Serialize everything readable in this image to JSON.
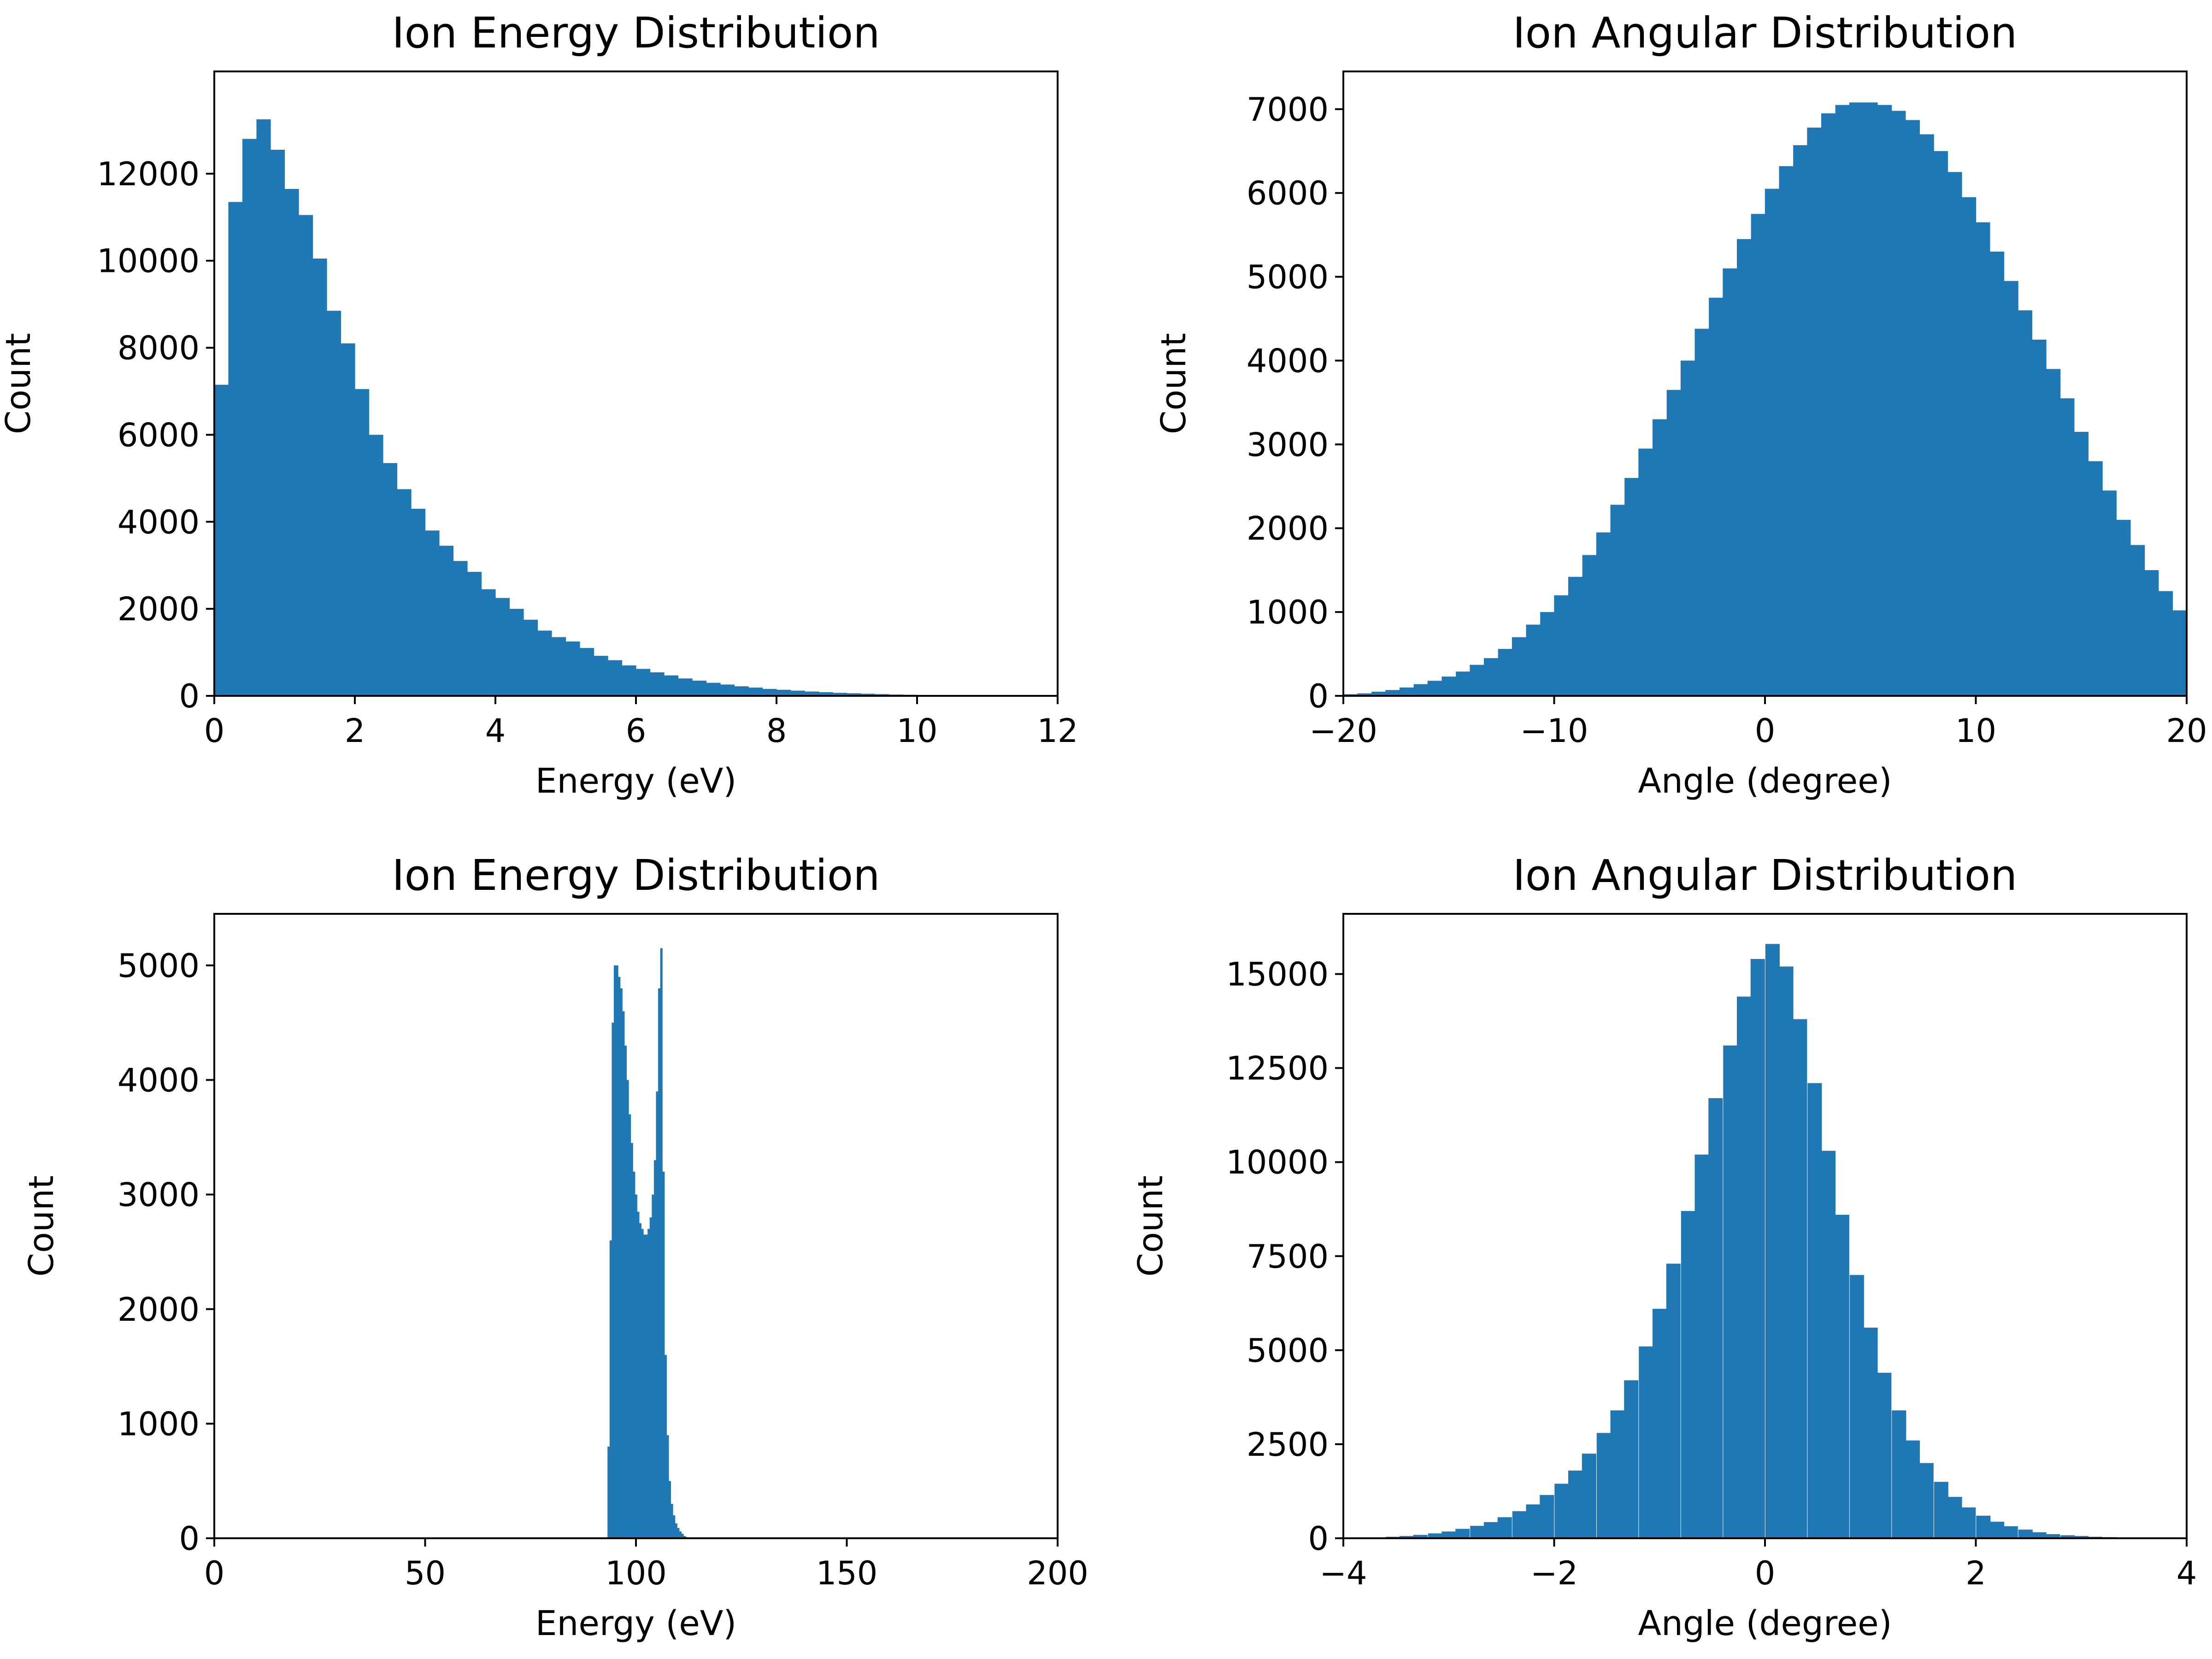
{
  "colors": {
    "bar": "#1f77b4",
    "axis": "#000000",
    "background": "#ffffff"
  },
  "chart_data": [
    {
      "type": "bar",
      "title": "Ion Energy Distribution",
      "xlabel": "Energy (eV)",
      "ylabel": "Count",
      "xlim": [
        0,
        12
      ],
      "ylim": [
        0,
        14350
      ],
      "xticks": [
        0,
        2,
        4,
        6,
        8,
        10,
        12
      ],
      "yticks": [
        0,
        2000,
        4000,
        6000,
        8000,
        10000,
        12000
      ],
      "bin_width": 0.2,
      "x": [
        0.1,
        0.3,
        0.5,
        0.7,
        0.9,
        1.1,
        1.3,
        1.5,
        1.7,
        1.9,
        2.1,
        2.3,
        2.5,
        2.7,
        2.9,
        3.1,
        3.3,
        3.5,
        3.7,
        3.9,
        4.1,
        4.3,
        4.5,
        4.7,
        4.9,
        5.1,
        5.3,
        5.5,
        5.7,
        5.9,
        6.1,
        6.3,
        6.5,
        6.7,
        6.9,
        7.1,
        7.3,
        7.5,
        7.7,
        7.9,
        8.1,
        8.3,
        8.5,
        8.7,
        8.9,
        9.1,
        9.3,
        9.5,
        9.7,
        9.9
      ],
      "values": [
        7150,
        11350,
        12800,
        13250,
        12550,
        11650,
        11050,
        10050,
        8850,
        8100,
        7050,
        6000,
        5350,
        4750,
        4300,
        3800,
        3450,
        3100,
        2850,
        2450,
        2250,
        2000,
        1750,
        1500,
        1350,
        1250,
        1100,
        920,
        820,
        700,
        620,
        540,
        470,
        400,
        350,
        300,
        260,
        220,
        190,
        160,
        140,
        120,
        100,
        85,
        70,
        60,
        50,
        40,
        30,
        25
      ],
      "legend": "none",
      "grid": false
    },
    {
      "type": "bar",
      "title": "Ion Angular Distribution",
      "xlabel": "Angle (degree)",
      "ylabel": "Count",
      "xlim": [
        -20,
        20
      ],
      "ylim": [
        0,
        7450
      ],
      "xticks": [
        -20,
        -10,
        0,
        10,
        20
      ],
      "xtick_labels": [
        "−20",
        "−10",
        "0",
        "10",
        "20"
      ],
      "yticks": [
        0,
        1000,
        2000,
        3000,
        4000,
        5000,
        6000,
        7000
      ],
      "bin_width": 0.6667,
      "x": [
        -19.67,
        -19.0,
        -18.33,
        -17.67,
        -17.0,
        -16.33,
        -15.67,
        -15.0,
        -14.33,
        -13.67,
        -13.0,
        -12.33,
        -11.67,
        -11.0,
        -10.33,
        -9.67,
        -9.0,
        -8.33,
        -7.67,
        -7.0,
        -6.33,
        -5.67,
        -5.0,
        -4.33,
        -3.67,
        -3.0,
        -2.33,
        -1.67,
        -1.0,
        -0.33,
        0.33,
        1.0,
        1.67,
        2.33,
        3.0,
        3.67,
        4.33,
        5.0,
        5.67,
        6.33,
        7.0,
        7.67,
        8.33,
        9.0,
        9.67,
        10.33,
        11.0,
        11.67,
        12.33,
        13.0,
        13.67,
        14.33,
        15.0,
        15.67,
        16.33,
        17.0,
        17.67,
        18.33,
        19.0,
        19.67
      ],
      "values": [
        20,
        30,
        50,
        70,
        100,
        140,
        180,
        230,
        290,
        370,
        450,
        560,
        700,
        850,
        1000,
        1200,
        1420,
        1680,
        1950,
        2280,
        2600,
        2950,
        3300,
        3650,
        4000,
        4380,
        4750,
        5100,
        5450,
        5750,
        6050,
        6320,
        6570,
        6780,
        6950,
        7050,
        7080,
        7080,
        7050,
        6980,
        6870,
        6700,
        6500,
        6250,
        5950,
        5650,
        5300,
        4950,
        4600,
        4250,
        3900,
        3550,
        3150,
        2800,
        2450,
        2100,
        1800,
        1500,
        1250,
        1020
      ],
      "legend": "none",
      "grid": false
    },
    {
      "type": "bar",
      "title": "Ion Energy Distribution",
      "xlabel": "Energy (eV)",
      "ylabel": "Count",
      "xlim": [
        0,
        200
      ],
      "ylim": [
        0,
        5450
      ],
      "xticks": [
        0,
        50,
        100,
        150,
        200
      ],
      "yticks": [
        0,
        1000,
        2000,
        3000,
        4000,
        5000
      ],
      "bin_width": 0.5,
      "x": [
        93.5,
        94.0,
        94.5,
        95.0,
        95.5,
        96.0,
        96.5,
        97.0,
        97.5,
        98.0,
        98.5,
        99.0,
        99.5,
        100.0,
        100.5,
        101.0,
        101.5,
        102.0,
        102.5,
        103.0,
        103.5,
        104.0,
        104.5,
        105.0,
        105.5,
        106.0,
        106.5,
        107.0,
        107.5,
        108.0,
        108.5,
        109.0,
        109.5,
        110.0,
        110.5,
        111.0,
        111.5,
        112.0
      ],
      "values": [
        800,
        2600,
        4500,
        5000,
        5000,
        4900,
        4800,
        4600,
        4300,
        4000,
        3700,
        3450,
        3200,
        3000,
        2850,
        2750,
        2700,
        2650,
        2650,
        2700,
        2800,
        3000,
        3300,
        3900,
        4800,
        5150,
        3200,
        1600,
        900,
        500,
        300,
        200,
        130,
        90,
        60,
        40,
        20,
        10
      ],
      "legend": "none",
      "grid": false
    },
    {
      "type": "bar",
      "title": "Ion Angular Distribution",
      "xlabel": "Angle (degree)",
      "ylabel": "Count",
      "xlim": [
        -4,
        4
      ],
      "ylim": [
        0,
        16600
      ],
      "xticks": [
        -4,
        -2,
        0,
        2,
        4
      ],
      "xtick_labels": [
        "−4",
        "−2",
        "0",
        "2",
        "4"
      ],
      "yticks": [
        0,
        2500,
        5000,
        7500,
        10000,
        12500,
        15000
      ],
      "bin_width": 0.1333,
      "x": [
        -3.93,
        -3.8,
        -3.67,
        -3.53,
        -3.4,
        -3.27,
        -3.13,
        -3.0,
        -2.87,
        -2.73,
        -2.6,
        -2.47,
        -2.33,
        -2.2,
        -2.07,
        -1.93,
        -1.8,
        -1.67,
        -1.53,
        -1.4,
        -1.27,
        -1.13,
        -1.0,
        -0.87,
        -0.73,
        -0.6,
        -0.47,
        -0.33,
        -0.2,
        -0.07,
        0.07,
        0.2,
        0.33,
        0.47,
        0.6,
        0.73,
        0.87,
        1.0,
        1.13,
        1.27,
        1.4,
        1.53,
        1.67,
        1.8,
        1.93,
        2.07,
        2.2,
        2.33,
        2.47,
        2.6,
        2.73,
        2.87,
        3.0,
        3.13,
        3.27,
        3.4,
        3.53,
        3.67,
        3.8,
        3.93
      ],
      "values": [
        10,
        15,
        25,
        40,
        60,
        90,
        130,
        180,
        250,
        330,
        430,
        560,
        720,
        900,
        1150,
        1450,
        1800,
        2250,
        2800,
        3400,
        4200,
        5100,
        6100,
        7300,
        8700,
        10200,
        11700,
        13100,
        14400,
        15400,
        15800,
        15200,
        13800,
        12100,
        10300,
        8600,
        7000,
        5600,
        4400,
        3400,
        2600,
        2000,
        1500,
        1100,
        820,
        600,
        440,
        320,
        230,
        160,
        110,
        80,
        60,
        40,
        30,
        20,
        14,
        10,
        7,
        5
      ],
      "legend": "none",
      "grid": false
    }
  ]
}
